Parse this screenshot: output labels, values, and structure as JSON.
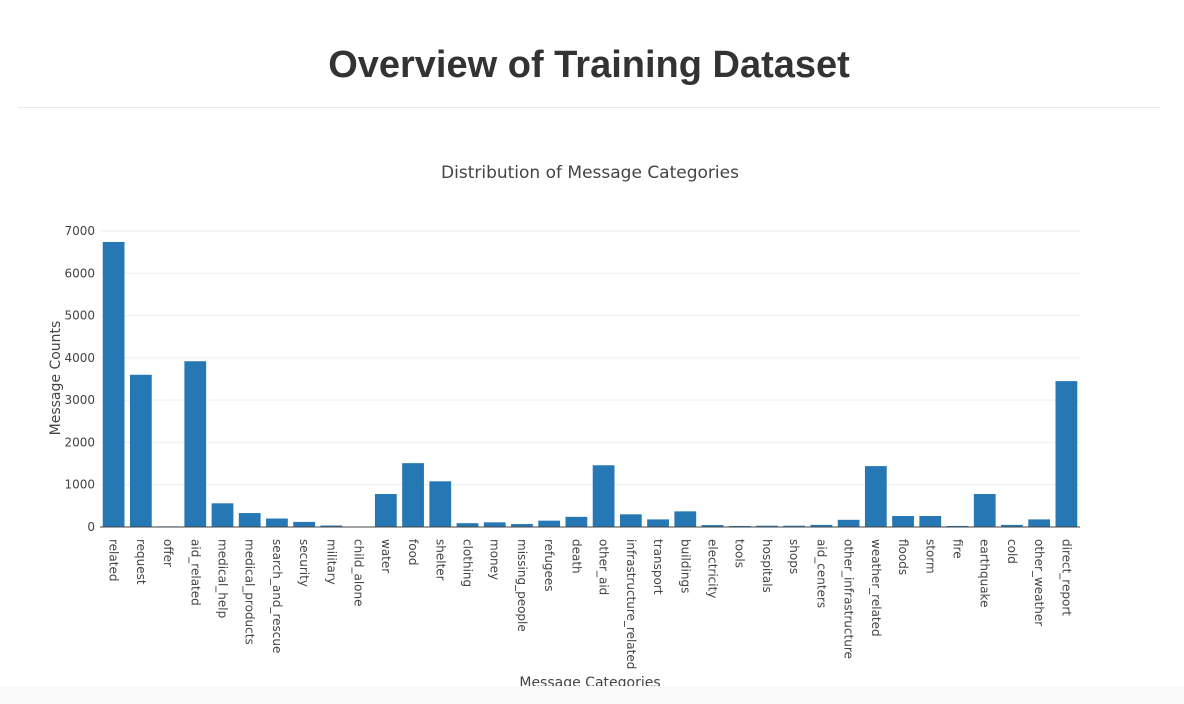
{
  "page": {
    "title": "Overview of Training Dataset"
  },
  "colors": {
    "bar": "#2678b4",
    "grid": "#eeeeee",
    "axis": "#444444"
  },
  "chart_data": {
    "type": "bar",
    "title": "Distribution of Message Categories",
    "xlabel": "Message Categories",
    "ylabel": "Message Counts",
    "ylim": [
      0,
      7000
    ],
    "yticks": [
      0,
      1000,
      2000,
      3000,
      4000,
      5000,
      6000,
      7000
    ],
    "grid": true,
    "categories": [
      "related",
      "request",
      "offer",
      "aid_related",
      "medical_help",
      "medical_products",
      "search_and_rescue",
      "security",
      "military",
      "child_alone",
      "water",
      "food",
      "shelter",
      "clothing",
      "money",
      "missing_people",
      "refugees",
      "death",
      "other_aid",
      "infrastructure_related",
      "transport",
      "buildings",
      "electricity",
      "tools",
      "hospitals",
      "shops",
      "aid_centers",
      "other_infrastructure",
      "weather_related",
      "floods",
      "storm",
      "fire",
      "earthquake",
      "cold",
      "other_weather",
      "direct_report"
    ],
    "values": [
      6740,
      3600,
      15,
      3920,
      560,
      330,
      200,
      120,
      35,
      0,
      780,
      1510,
      1080,
      90,
      110,
      70,
      150,
      240,
      1460,
      300,
      180,
      370,
      45,
      25,
      30,
      30,
      50,
      170,
      1440,
      260,
      260,
      25,
      780,
      50,
      180,
      3450
    ]
  }
}
